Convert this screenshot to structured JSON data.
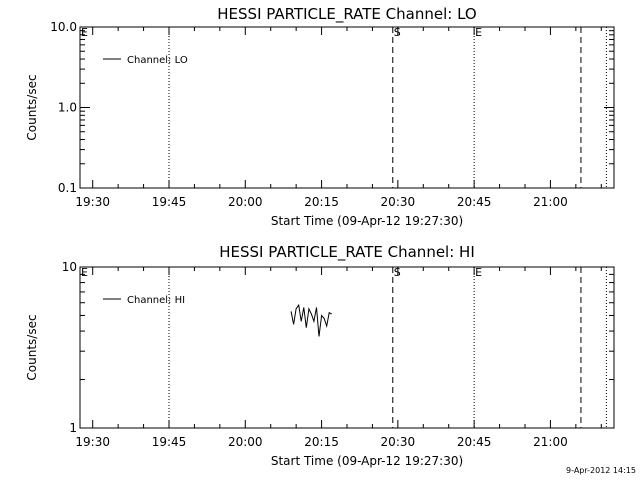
{
  "chart_data": [
    {
      "type": "line",
      "title": "HESSI PARTICLE_RATE Channel: LO",
      "xlabel": "Start Time (09-Apr-12 19:27:30)",
      "ylabel": "Counts/sec",
      "yscale": "log",
      "xlim": [
        "19:27:30",
        "21:12:30"
      ],
      "ylim": [
        0.1,
        10.0
      ],
      "x_ticks": [
        "19:30",
        "19:45",
        "20:00",
        "20:15",
        "20:30",
        "20:45",
        "21:00"
      ],
      "y_ticks": [
        "0.1",
        "1.0",
        "10.0"
      ],
      "legend": {
        "position": "top-left",
        "label": "Channel: LO"
      },
      "series": [
        {
          "name": "Channel: LO",
          "x": [],
          "y": []
        }
      ],
      "vlines": [
        {
          "time": "19:45",
          "style": "dotted",
          "label": ""
        },
        {
          "time": "20:29",
          "style": "dashed",
          "label": "S"
        },
        {
          "time": "20:45",
          "style": "dotted",
          "label": "E"
        },
        {
          "time": "21:06",
          "style": "dashed",
          "label": ""
        },
        {
          "time": "21:11",
          "style": "dotted",
          "label": ""
        }
      ],
      "edge_label": "E"
    },
    {
      "type": "line",
      "title": "HESSI PARTICLE_RATE Channel: HI",
      "xlabel": "Start Time (09-Apr-12 19:27:30)",
      "ylabel": "Counts/sec",
      "yscale": "log",
      "xlim": [
        "19:27:30",
        "21:12:30"
      ],
      "ylim": [
        1,
        10
      ],
      "x_ticks": [
        "19:30",
        "19:45",
        "20:00",
        "20:15",
        "20:30",
        "20:45",
        "21:00"
      ],
      "y_ticks": [
        "1",
        "10"
      ],
      "legend": {
        "position": "top-left",
        "label": "Channel: HI"
      },
      "series": [
        {
          "name": "Channel: HI",
          "x": [
            "20:09:00",
            "20:09:30",
            "20:10:00",
            "20:10:30",
            "20:11:00",
            "20:11:30",
            "20:12:00",
            "20:12:30",
            "20:13:00",
            "20:13:30",
            "20:14:00",
            "20:14:30",
            "20:15:00",
            "20:15:30",
            "20:16:00",
            "20:16:30",
            "20:17:00"
          ],
          "y": [
            5.3,
            4.4,
            5.5,
            5.8,
            4.6,
            5.6,
            4.2,
            5.5,
            5.1,
            4.6,
            5.6,
            3.7,
            5.0,
            4.8,
            4.3,
            5.2,
            5.1
          ]
        }
      ],
      "vlines": [
        {
          "time": "19:45",
          "style": "dotted",
          "label": ""
        },
        {
          "time": "20:29",
          "style": "dashed",
          "label": "S"
        },
        {
          "time": "20:45",
          "style": "dotted",
          "label": "E"
        },
        {
          "time": "21:06",
          "style": "dashed",
          "label": ""
        },
        {
          "time": "21:11",
          "style": "dotted",
          "label": ""
        }
      ],
      "edge_label": "E"
    }
  ],
  "footer": {
    "timestamp": "9-Apr-2012 14:15"
  }
}
